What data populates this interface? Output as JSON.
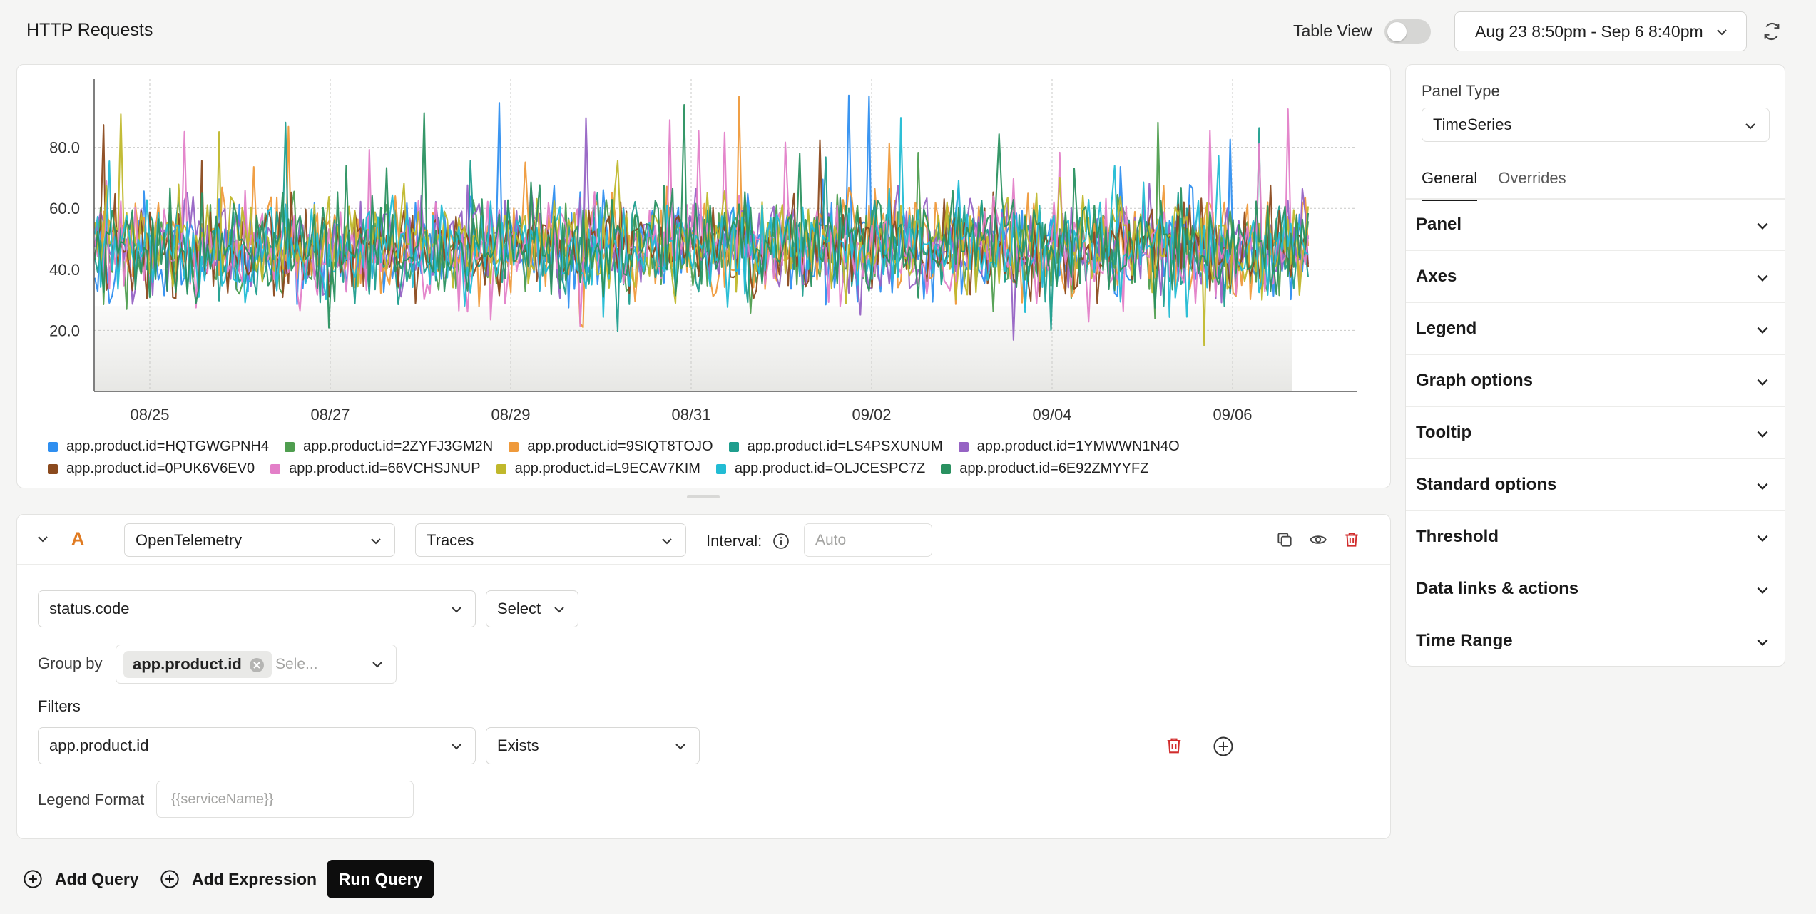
{
  "header": {
    "title": "HTTP Requests",
    "table_view_label": "Table View",
    "table_view_on": false,
    "date_range": "Aug 23 8:50pm - Sep 6 8:40pm"
  },
  "chart_data": {
    "type": "line",
    "x_ticks": [
      "08/25",
      "08/27",
      "08/29",
      "08/31",
      "09/02",
      "09/04",
      "09/06"
    ],
    "y_ticks": [
      "20.0",
      "40.0",
      "60.0",
      "80.0"
    ],
    "ylim": [
      0,
      100
    ],
    "grid": true,
    "legend_position": "bottom",
    "series": [
      {
        "name": "app.product.id=HQTGWGPNH4",
        "color": "#2f8ff0",
        "seed": 11,
        "mean": 48,
        "spread": 14
      },
      {
        "name": "app.product.id=2ZYFJ3GM2N",
        "color": "#4f9e4f",
        "seed": 23,
        "mean": 47,
        "spread": 13
      },
      {
        "name": "app.product.id=9SIQT8TOJO",
        "color": "#ef9a3b",
        "seed": 37,
        "mean": 49,
        "spread": 14
      },
      {
        "name": "app.product.id=LS4PSXUNUM",
        "color": "#1f9e8e",
        "seed": 41,
        "mean": 47,
        "spread": 13
      },
      {
        "name": "app.product.id=1YMWWN1N4O",
        "color": "#9663c4",
        "seed": 53,
        "mean": 48,
        "spread": 14
      },
      {
        "name": "app.product.id=0PUK6V6EV0",
        "color": "#8b4a1e",
        "seed": 67,
        "mean": 47,
        "spread": 14
      },
      {
        "name": "app.product.id=66VCHSJNUP",
        "color": "#e37fc8",
        "seed": 71,
        "mean": 46,
        "spread": 13
      },
      {
        "name": "app.product.id=L9ECAV7KIM",
        "color": "#c0b82c",
        "seed": 83,
        "mean": 49,
        "spread": 14
      },
      {
        "name": "app.product.id=OLJCESPC7Z",
        "color": "#22bcd4",
        "seed": 97,
        "mean": 47,
        "spread": 14
      },
      {
        "name": "app.product.id=6E92ZMYYFZ",
        "color": "#2a9160",
        "seed": 101,
        "mean": 48,
        "spread": 13
      }
    ]
  },
  "query": {
    "letter": "A",
    "datasource": "OpenTelemetry",
    "signal": "Traces",
    "interval_label": "Interval:",
    "interval_placeholder": "Auto",
    "metric_field": "status.code",
    "aggregation": "Select",
    "group_by_label": "Group by",
    "group_by_chip": "app.product.id",
    "group_by_placeholder": "Sele...",
    "filters_label": "Filters",
    "filter_field": "app.product.id",
    "filter_operator": "Exists",
    "legend_format_label": "Legend Format",
    "legend_format_placeholder": "{{serviceName}}"
  },
  "actions": {
    "add_query": "Add Query",
    "add_expression": "Add Expression",
    "run_query": "Run Query"
  },
  "side_panel": {
    "panel_type_label": "Panel Type",
    "panel_type": "TimeSeries",
    "tabs": [
      "General",
      "Overrides"
    ],
    "sections": [
      "Panel",
      "Axes",
      "Legend",
      "Graph options",
      "Tooltip",
      "Standard options",
      "Threshold",
      "Data links & actions",
      "Time Range"
    ]
  }
}
